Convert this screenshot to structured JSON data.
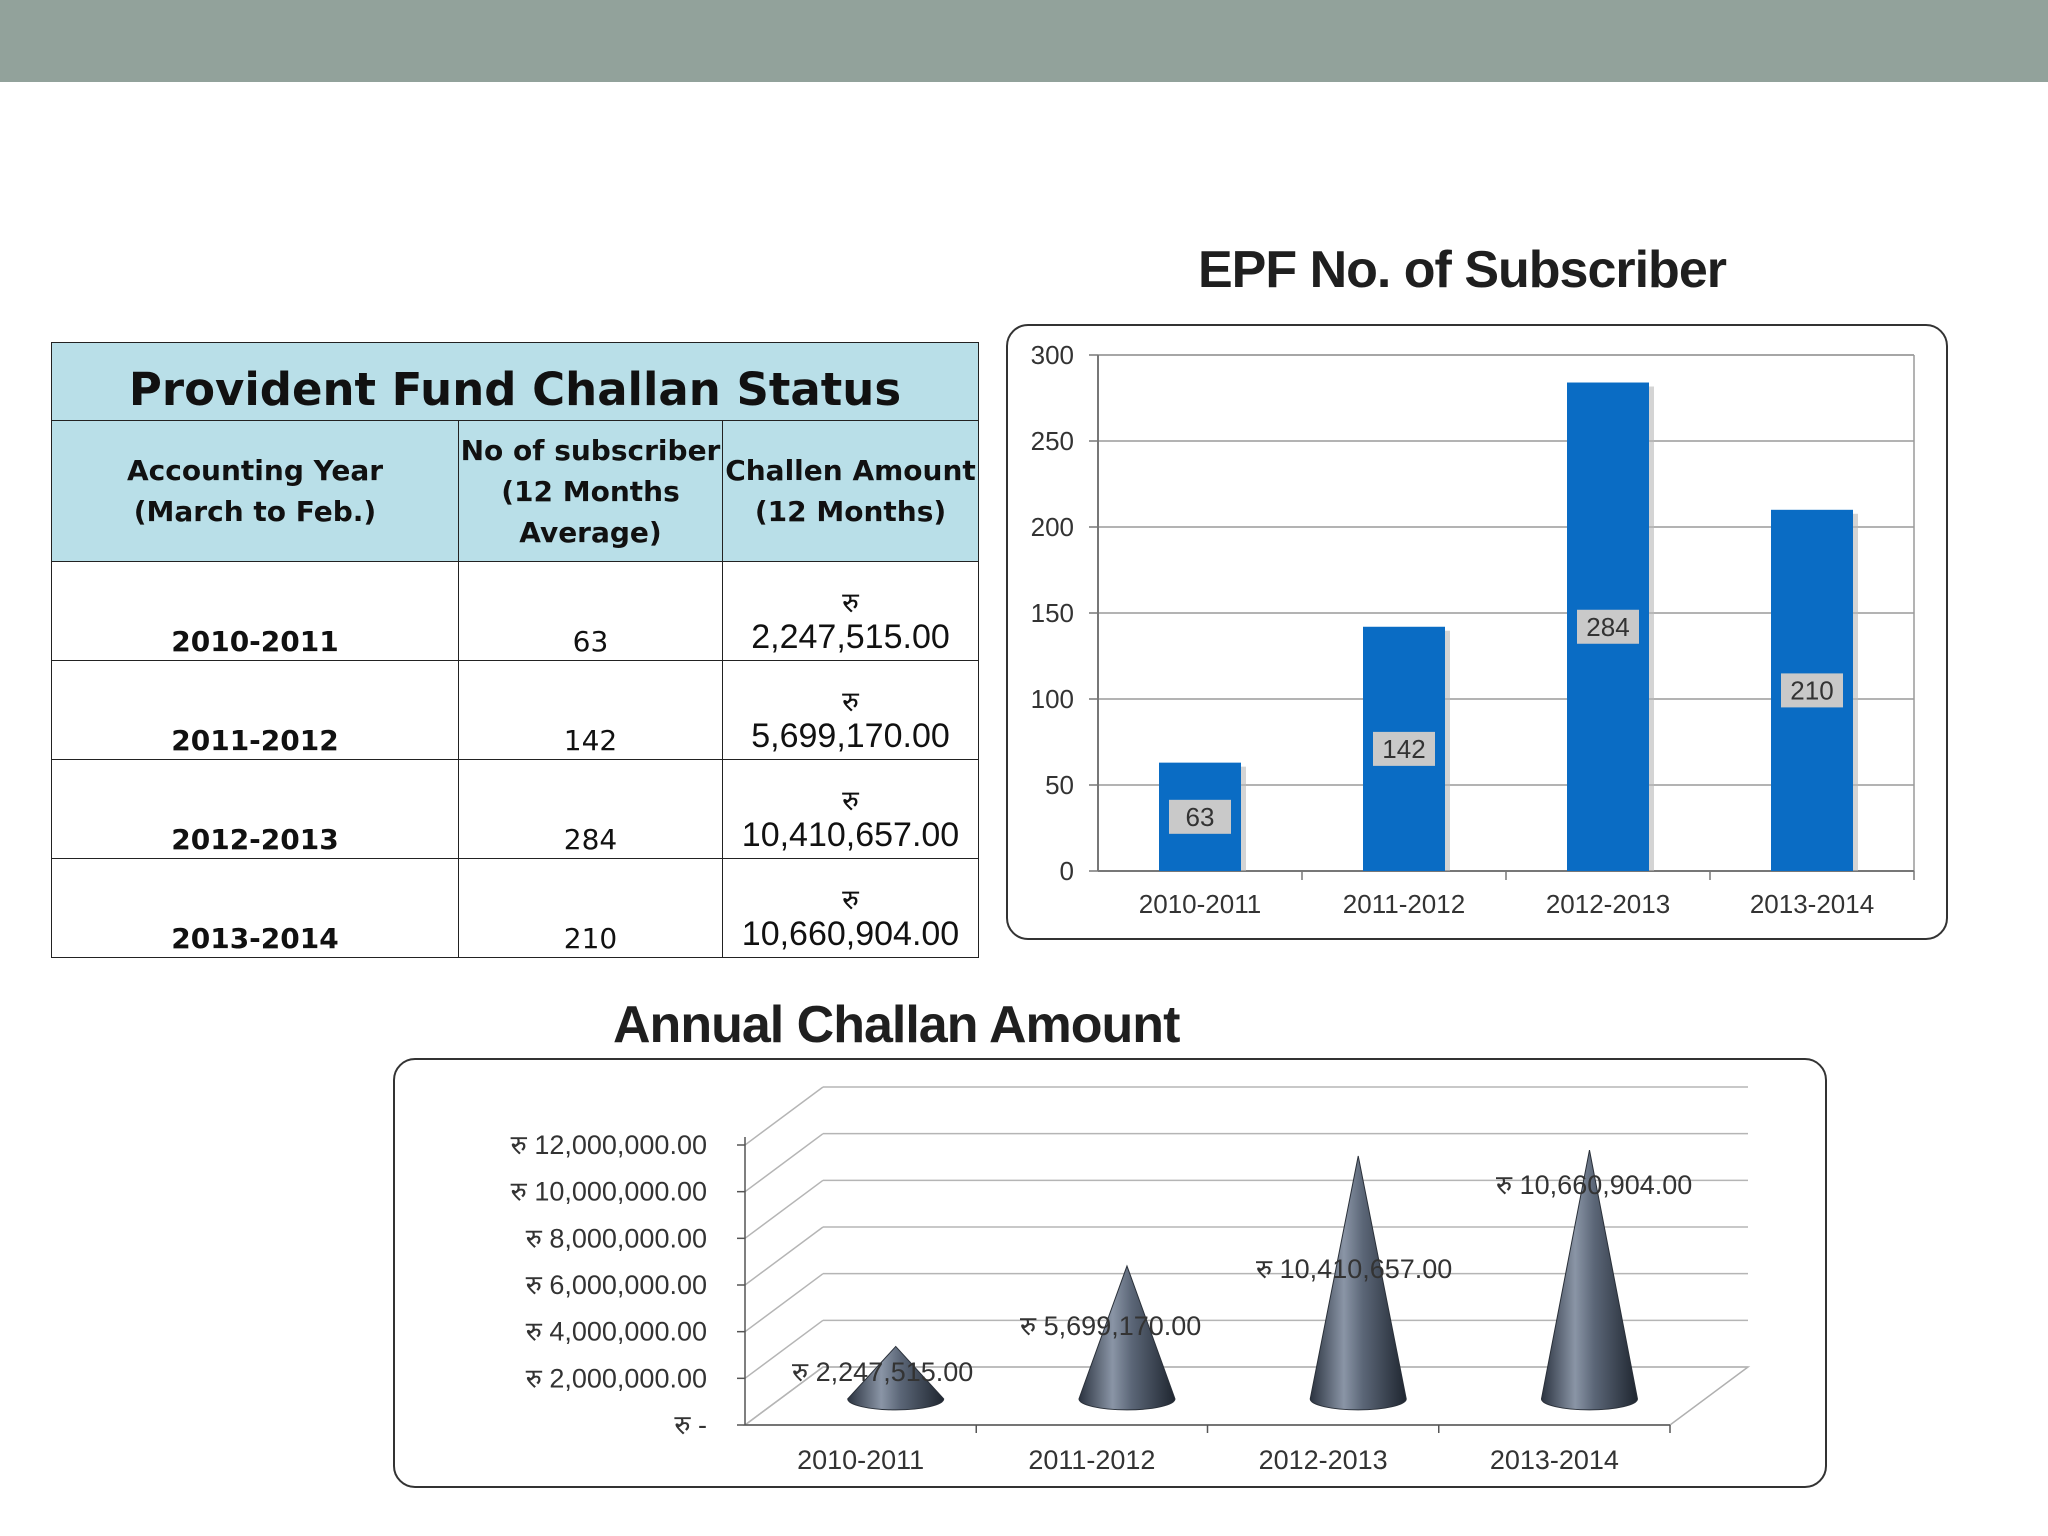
{
  "colors": {
    "topbar": "#92a29b",
    "header_bg": "#b9dfe8",
    "bar": "#0a6cc4",
    "cone": "#4a5566"
  },
  "table": {
    "title": "Provident Fund Challan Status",
    "headers": {
      "year": [
        "Accounting Year",
        "(March to Feb.)"
      ],
      "subscribers": [
        "No of subscriber",
        "(12 Months",
        "Average)"
      ],
      "amount": [
        "Challen Amount",
        "(12 Months)"
      ]
    },
    "currency_symbol": "रु",
    "rows": [
      {
        "year": "2010-2011",
        "subscribers": "63",
        "amount": "2,247,515.00"
      },
      {
        "year": "2011-2012",
        "subscribers": "142",
        "amount": "5,699,170.00"
      },
      {
        "year": "2012-2013",
        "subscribers": "284",
        "amount": "10,410,657.00"
      },
      {
        "year": "2013-2014",
        "subscribers": "210",
        "amount": "10,660,904.00"
      }
    ]
  },
  "chart_data": [
    {
      "type": "bar",
      "title": "EPF No. of Subscriber",
      "categories": [
        "2010-2011",
        "2011-2012",
        "2012-2013",
        "2013-2014"
      ],
      "values": [
        63,
        142,
        284,
        210
      ],
      "data_labels": [
        "63",
        "142",
        "284",
        "210"
      ],
      "ylim": [
        0,
        300
      ],
      "yticks": [
        0,
        50,
        100,
        150,
        200,
        250,
        300
      ],
      "ytick_labels": [
        "0",
        "50",
        "100",
        "150",
        "200",
        "250",
        "300"
      ],
      "grid": true,
      "xlabel": "",
      "ylabel": ""
    },
    {
      "type": "bar",
      "style": "3d-cone",
      "title": "Annual Challan Amount",
      "categories": [
        "2010-2011",
        "2011-2012",
        "2012-2013",
        "2013-2014"
      ],
      "values": [
        2247515,
        5699170,
        10410657,
        10660904
      ],
      "data_labels": [
        "रु 2,247,515.00",
        "रु 5,699,170.00",
        "रु 10,410,657.00",
        "रु 10,660,904.00"
      ],
      "ylim": [
        0,
        12000000
      ],
      "yticks": [
        0,
        2000000,
        4000000,
        6000000,
        8000000,
        10000000,
        12000000
      ],
      "ytick_labels": [
        "रु -",
        "रु 2,000,000.00",
        "रु 4,000,000.00",
        "रु 6,000,000.00",
        "रु 8,000,000.00",
        "रु 10,000,000.00",
        "रु 12,000,000.00"
      ],
      "grid": true,
      "xlabel": "",
      "ylabel": ""
    }
  ]
}
